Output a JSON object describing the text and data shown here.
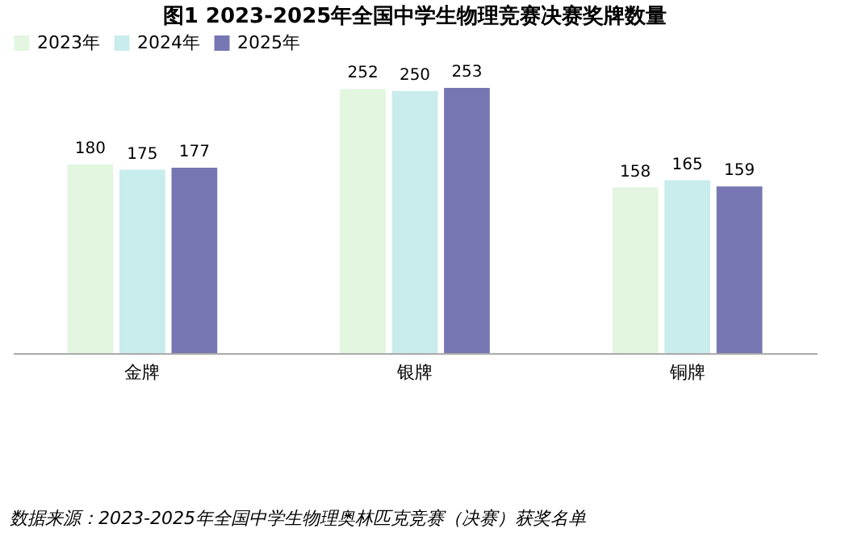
{
  "chart_data": {
    "type": "bar",
    "title": "图1 2023-2025年全国中学生物理竞赛决赛奖牌数量",
    "categories": [
      "金牌",
      "银牌",
      "铜牌"
    ],
    "series": [
      {
        "name": "2023年",
        "color": "#e2f6e0",
        "values": [
          180,
          252,
          158
        ]
      },
      {
        "name": "2024年",
        "color": "#c9ecec",
        "values": [
          175,
          250,
          165
        ]
      },
      {
        "name": "2025年",
        "color": "#7677b2",
        "values": [
          177,
          253,
          159
        ]
      }
    ],
    "data_labels": true,
    "legend": "top",
    "grid": false,
    "annotations": [
      "数据来源：2023-2025年全国中学生物理奥林匹克竞赛（决赛）获奖名单"
    ]
  }
}
